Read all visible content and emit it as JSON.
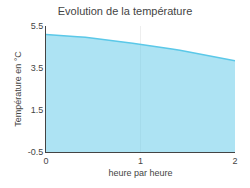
{
  "chart_data": {
    "type": "area",
    "title": "Evolution de la température",
    "xlabel": "heure par heure",
    "ylabel": "Température en °C",
    "x": [
      0,
      0.083,
      0.167,
      0.25,
      0.333,
      0.417,
      0.5,
      0.583,
      0.667,
      0.75,
      0.833,
      0.917,
      1.0,
      1.083,
      1.167,
      1.25,
      1.333,
      1.417,
      1.5,
      1.583,
      1.667,
      1.75,
      1.833,
      1.917,
      2.0
    ],
    "values": [
      5.1,
      5.08,
      5.05,
      5.02,
      4.99,
      4.96,
      4.92,
      4.88,
      4.83,
      4.78,
      4.73,
      4.68,
      4.63,
      4.58,
      4.52,
      4.46,
      4.4,
      4.34,
      4.27,
      4.21,
      4.14,
      4.07,
      4.0,
      3.93,
      3.85
    ],
    "color": "#5bc8e8",
    "xlim": [
      0,
      2
    ],
    "ylim": [
      -0.5,
      5.5
    ],
    "xticks": [
      0,
      1,
      2
    ],
    "yticks": [
      -0.5,
      1.5,
      3.5,
      5.5
    ],
    "grid": true
  }
}
